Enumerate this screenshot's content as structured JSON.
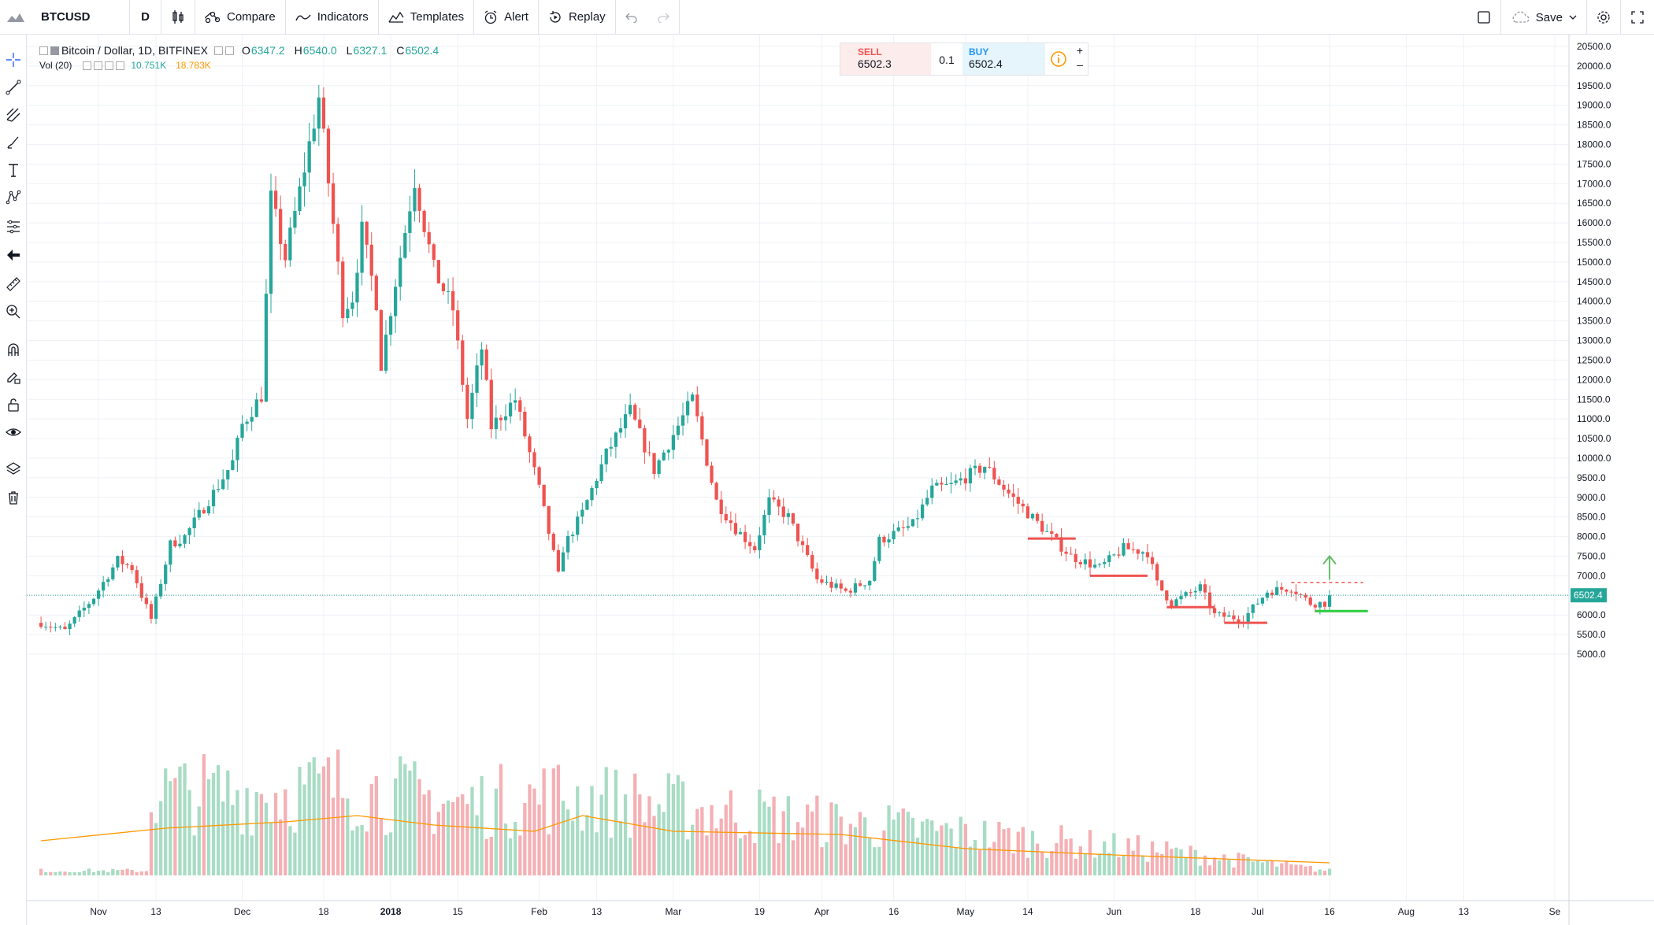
{
  "toolbar": {
    "symbol": "BTCUSD",
    "interval": "D",
    "compare_label": "Compare",
    "indicators_label": "Indicators",
    "templates_label": "Templates",
    "alert_label": "Alert",
    "replay_label": "Replay",
    "save_label": "Save"
  },
  "legend": {
    "title": "Bitcoin / Dollar, 1D, BITFINEX",
    "open_label": "O",
    "open": "6347.2",
    "high_label": "H",
    "high": "6540.0",
    "low_label": "L",
    "low": "6327.1",
    "close_label": "C",
    "close": "6502.4",
    "vol_label": "Vol (20)",
    "vol_value": "10.751K",
    "vol_ma": "18.783K"
  },
  "trade_panel": {
    "sell_label": "SELL",
    "sell_price": "6502.3",
    "size": "0.1",
    "buy_label": "BUY",
    "buy_price": "6502.4"
  },
  "colors": {
    "up": "#26a69a",
    "down": "#ef5350",
    "vol_up": "#a8dcc4",
    "vol_down": "#f4b0b4",
    "vol_ma": "#ff9800",
    "price_line": "#26a69a",
    "grid": "#eef1f5"
  },
  "chart_data": {
    "type": "candlestick",
    "title": "Bitcoin / Dollar, 1D, BITFINEX",
    "ylim": [
      4700,
      20700
    ],
    "y_ticks": [
      "20500.0",
      "20000.0",
      "19500.0",
      "19000.0",
      "18500.0",
      "18000.0",
      "17500.0",
      "17000.0",
      "16500.0",
      "16000.0",
      "15500.0",
      "15000.0",
      "14500.0",
      "14000.0",
      "13500.0",
      "13000.0",
      "12500.0",
      "12000.0",
      "11500.0",
      "11000.0",
      "10500.0",
      "10000.0",
      "9500.0",
      "9000.0",
      "8500.0",
      "8000.0",
      "7500.0",
      "7000.0",
      "6500.0",
      "6000.0",
      "5500.0",
      "5000.0"
    ],
    "x_ticks": [
      {
        "date": "2017-11-01",
        "label": "Nov"
      },
      {
        "date": "2017-11-13",
        "label": "13"
      },
      {
        "date": "2017-12-01",
        "label": "Dec"
      },
      {
        "date": "2017-12-18",
        "label": "18"
      },
      {
        "date": "2018-01-01",
        "label": "2018"
      },
      {
        "date": "2018-01-15",
        "label": "15"
      },
      {
        "date": "2018-02-01",
        "label": "Feb"
      },
      {
        "date": "2018-02-13",
        "label": "13"
      },
      {
        "date": "2018-03-01",
        "label": "Mar"
      },
      {
        "date": "2018-03-19",
        "label": "19"
      },
      {
        "date": "2018-04-01",
        "label": "Apr"
      },
      {
        "date": "2018-04-16",
        "label": "16"
      },
      {
        "date": "2018-05-01",
        "label": "May"
      },
      {
        "date": "2018-05-14",
        "label": "14"
      },
      {
        "date": "2018-06-01",
        "label": "Jun"
      },
      {
        "date": "2018-06-18",
        "label": "18"
      },
      {
        "date": "2018-07-01",
        "label": "Jul"
      },
      {
        "date": "2018-07-16",
        "label": "16"
      },
      {
        "date": "2018-08-01",
        "label": "Aug"
      },
      {
        "date": "2018-08-13",
        "label": "13"
      },
      {
        "date": "2018-09-01",
        "label": "Se"
      }
    ],
    "x_range": [
      "2017-10-19",
      "2018-09-02"
    ],
    "last_price": "6502.4",
    "anchors": [
      {
        "date": "2017-10-20",
        "close": 5800
      },
      {
        "date": "2017-10-25",
        "close": 5600
      },
      {
        "date": "2017-10-31",
        "close": 6450
      },
      {
        "date": "2017-11-05",
        "close": 7400
      },
      {
        "date": "2017-11-08",
        "close": 7200
      },
      {
        "date": "2017-11-10",
        "close": 6500
      },
      {
        "date": "2017-11-12",
        "close": 5900
      },
      {
        "date": "2017-11-16",
        "close": 7800
      },
      {
        "date": "2017-11-19",
        "close": 8000
      },
      {
        "date": "2017-11-26",
        "close": 9300
      },
      {
        "date": "2017-11-29",
        "close": 9900
      },
      {
        "date": "2017-12-01",
        "close": 10850
      },
      {
        "date": "2017-12-05",
        "close": 11600
      },
      {
        "date": "2017-12-07",
        "close": 16600
      },
      {
        "date": "2017-12-10",
        "close": 15100
      },
      {
        "date": "2017-12-13",
        "close": 16800
      },
      {
        "date": "2017-12-17",
        "close": 19200
      },
      {
        "date": "2017-12-22",
        "close": 13800
      },
      {
        "date": "2017-12-24",
        "close": 14100
      },
      {
        "date": "2017-12-26",
        "close": 15800
      },
      {
        "date": "2017-12-29",
        "close": 14000
      },
      {
        "date": "2017-12-30",
        "close": 12400
      },
      {
        "date": "2018-01-02",
        "close": 14500
      },
      {
        "date": "2018-01-06",
        "close": 17100
      },
      {
        "date": "2018-01-10",
        "close": 14800
      },
      {
        "date": "2018-01-14",
        "close": 13800
      },
      {
        "date": "2018-01-17",
        "close": 11000
      },
      {
        "date": "2018-01-20",
        "close": 12800
      },
      {
        "date": "2018-01-22",
        "close": 10800
      },
      {
        "date": "2018-01-27",
        "close": 11500
      },
      {
        "date": "2018-02-01",
        "close": 9200
      },
      {
        "date": "2018-02-05",
        "close": 7000
      },
      {
        "date": "2018-02-06",
        "close": 7700
      },
      {
        "date": "2018-02-10",
        "close": 8600
      },
      {
        "date": "2018-02-15",
        "close": 10100
      },
      {
        "date": "2018-02-20",
        "close": 11200
      },
      {
        "date": "2018-02-25",
        "close": 9700
      },
      {
        "date": "2018-03-05",
        "close": 11500
      },
      {
        "date": "2018-03-10",
        "close": 8900
      },
      {
        "date": "2018-03-14",
        "close": 8200
      },
      {
        "date": "2018-03-18",
        "close": 7700
      },
      {
        "date": "2018-03-21",
        "close": 8900
      },
      {
        "date": "2018-03-25",
        "close": 8500
      },
      {
        "date": "2018-03-31",
        "close": 6900
      },
      {
        "date": "2018-04-06",
        "close": 6600
      },
      {
        "date": "2018-04-11",
        "close": 6900
      },
      {
        "date": "2018-04-13",
        "close": 7900
      },
      {
        "date": "2018-04-20",
        "close": 8300
      },
      {
        "date": "2018-04-24",
        "close": 9200
      },
      {
        "date": "2018-04-28",
        "close": 9300
      },
      {
        "date": "2018-05-05",
        "close": 9800
      },
      {
        "date": "2018-05-10",
        "close": 9100
      },
      {
        "date": "2018-05-14",
        "close": 8600
      },
      {
        "date": "2018-05-18",
        "close": 8100
      },
      {
        "date": "2018-05-23",
        "close": 7500
      },
      {
        "date": "2018-05-29",
        "close": 7200
      },
      {
        "date": "2018-06-03",
        "close": 7700
      },
      {
        "date": "2018-06-08",
        "close": 7600
      },
      {
        "date": "2018-06-10",
        "close": 6800
      },
      {
        "date": "2018-06-13",
        "close": 6300
      },
      {
        "date": "2018-06-19",
        "close": 6700
      },
      {
        "date": "2018-06-22",
        "close": 6000
      },
      {
        "date": "2018-06-28",
        "close": 5900
      },
      {
        "date": "2018-07-03",
        "close": 6600
      },
      {
        "date": "2018-07-08",
        "close": 6700
      },
      {
        "date": "2018-07-12",
        "close": 6300
      },
      {
        "date": "2018-07-15",
        "close": 6300
      },
      {
        "date": "2018-07-16",
        "close": 6502.4
      }
    ],
    "volume_ylim": [
      0,
      80
    ],
    "volume_anchors": [
      {
        "date": "2017-11-12",
        "value": 72
      },
      {
        "date": "2017-12-07",
        "value": 72
      },
      {
        "date": "2017-12-22",
        "value": 78
      },
      {
        "date": "2018-01-16",
        "value": 62
      },
      {
        "date": "2018-02-05",
        "value": 70
      },
      {
        "date": "2018-03-30",
        "value": 48
      },
      {
        "date": "2018-06-10",
        "value": 22
      },
      {
        "date": "2018-07-16",
        "value": 4
      }
    ],
    "volume_ma": [
      {
        "date": "2017-10-20",
        "value": 22
      },
      {
        "date": "2017-11-15",
        "value": 30
      },
      {
        "date": "2017-12-10",
        "value": 34
      },
      {
        "date": "2017-12-25",
        "value": 38
      },
      {
        "date": "2018-01-10",
        "value": 32
      },
      {
        "date": "2018-01-31",
        "value": 28
      },
      {
        "date": "2018-02-10",
        "value": 38
      },
      {
        "date": "2018-03-01",
        "value": 28
      },
      {
        "date": "2018-04-05",
        "value": 26
      },
      {
        "date": "2018-05-01",
        "value": 17
      },
      {
        "date": "2018-06-01",
        "value": 13
      },
      {
        "date": "2018-07-16",
        "value": 8
      }
    ],
    "annotations": [
      {
        "type": "support",
        "date_from": "2018-05-14",
        "date_to": "2018-05-24",
        "price": 7950,
        "color": "#ef5350"
      },
      {
        "type": "support",
        "date_from": "2018-05-27",
        "date_to": "2018-06-08",
        "price": 7000,
        "color": "#ef5350"
      },
      {
        "type": "support",
        "date_from": "2018-06-12",
        "date_to": "2018-06-22",
        "price": 6200,
        "color": "#ef5350"
      },
      {
        "type": "support",
        "date_from": "2018-06-24",
        "date_to": "2018-07-03",
        "price": 5800,
        "color": "#ef5350"
      },
      {
        "type": "support",
        "date_from": "2018-07-13",
        "date_to": "2018-07-24",
        "price": 6100,
        "color": "#2ecc40"
      },
      {
        "type": "resistance-dashed",
        "date_from": "2018-07-08",
        "date_to": "2018-07-23",
        "price": 6830,
        "color": "#ef5350"
      },
      {
        "type": "arrow-up",
        "date": "2018-07-16",
        "price_from": 6900,
        "price_to": 7500,
        "color": "#66bb6a"
      }
    ]
  }
}
